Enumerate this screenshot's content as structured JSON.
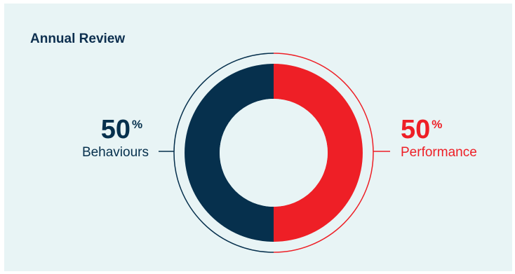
{
  "header": {
    "title": "Annual Review"
  },
  "colors": {
    "background": "#e8f4f5",
    "navy": "#06304d",
    "red": "#ee1f26",
    "title": "#0d2f4f"
  },
  "chart_data": {
    "type": "pie",
    "title": "Annual Review",
    "series": [
      {
        "name": "Behaviours",
        "value": 50,
        "display": "50",
        "unit": "%",
        "color": "#06304d"
      },
      {
        "name": "Performance",
        "value": 50,
        "display": "50",
        "unit": "%",
        "color": "#ee1f26"
      }
    ],
    "donut": true
  }
}
